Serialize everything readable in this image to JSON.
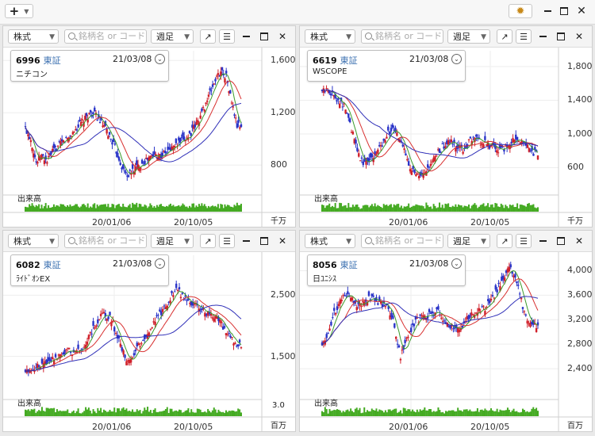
{
  "app": {
    "add_label": "+",
    "colors": {
      "up": "#d0202a",
      "down": "#2a34c8",
      "ma_short": "#3a9a2a",
      "ma_mid": "#d83030",
      "ma_long": "#3030b8",
      "volume": "#44aa22"
    }
  },
  "panels": [
    {
      "type_label": "株式",
      "search_placeholder": "銘柄名 or コード",
      "period_label": "週足",
      "code": "6996",
      "market": "東証",
      "date": "21/03/08",
      "name": "ニチコン",
      "volume_label": "出来高",
      "unit": "千万",
      "y_ticks": [
        "1,600",
        "1,200",
        "800"
      ],
      "x_ticks": [
        "20/01/06",
        "20/10/05"
      ],
      "chart_data": {
        "type": "candlestick",
        "ylim": [
          620,
          1650
        ],
        "y_tick_values": [
          1600,
          1200,
          800
        ],
        "closes": [
          1080,
          1000,
          820,
          870,
          830,
          900,
          940,
          980,
          1010,
          1060,
          1110,
          1150,
          1200,
          1180,
          1120,
          1060,
          980,
          880,
          760,
          720,
          770,
          800,
          830,
          860,
          880,
          870,
          900,
          930,
          960,
          990,
          1020,
          1080,
          1150,
          1250,
          1350,
          1450,
          1520,
          1480,
          1280,
          1100
        ]
      }
    },
    {
      "type_label": "株式",
      "search_placeholder": "銘柄名 or コード",
      "period_label": "週足",
      "code": "6619",
      "market": "東証",
      "date": "21/03/08",
      "name": "WSCOPE",
      "volume_label": "出来高",
      "unit": "千万",
      "y_ticks": [
        "1,800",
        "1,400",
        "1,000",
        "600"
      ],
      "x_ticks": [
        "20/01/06",
        "20/10/05"
      ],
      "chart_data": {
        "type": "candlestick",
        "ylim": [
          350,
          1950
        ],
        "y_tick_values": [
          1800,
          1400,
          1000,
          600
        ],
        "closes": [
          1500,
          1530,
          1450,
          1400,
          1300,
          1050,
          800,
          650,
          700,
          750,
          850,
          1000,
          1050,
          960,
          800,
          620,
          500,
          480,
          560,
          700,
          800,
          880,
          900,
          850,
          800,
          900,
          950,
          900,
          880,
          850,
          800,
          820,
          900,
          950,
          900,
          850,
          780
        ]
      }
    },
    {
      "type_label": "株式",
      "search_placeholder": "銘柄名 or コード",
      "period_label": "週足",
      "code": "6082",
      "market": "東証",
      "date": "21/03/08",
      "name": "ﾗｲﾄﾞｵﾝEX",
      "volume_label": "出来高",
      "unit": "百万",
      "vol_top_label": "3.0",
      "y_ticks": [
        "2,500",
        "1,500"
      ],
      "x_ticks": [
        "20/01/06",
        "20/10/05"
      ],
      "chart_data": {
        "type": "candlestick",
        "ylim": [
          900,
          3100
        ],
        "y_tick_values": [
          2500,
          1500
        ],
        "closes": [
          1250,
          1300,
          1350,
          1400,
          1450,
          1500,
          1550,
          1600,
          1550,
          1600,
          1700,
          1900,
          2100,
          2200,
          2150,
          1900,
          1600,
          1400,
          1550,
          1700,
          1850,
          2000,
          2150,
          2300,
          2450,
          2600,
          2500,
          2400,
          2350,
          2300,
          2200,
          2150,
          2100,
          1950,
          1800,
          1700
        ]
      }
    },
    {
      "type_label": "株式",
      "search_placeholder": "銘柄名 or コード",
      "period_label": "週足",
      "code": "8056",
      "market": "東証",
      "date": "21/03/08",
      "name": "日ﾕﾆｼｽ",
      "volume_label": "出来高",
      "unit": "百万",
      "y_ticks": [
        "4,000",
        "3,600",
        "3,200",
        "2,800",
        "2,400"
      ],
      "x_ticks": [
        "20/01/06",
        "20/10/05"
      ],
      "chart_data": {
        "type": "candlestick",
        "ylim": [
          2000,
          4200
        ],
        "y_tick_values": [
          4000,
          3600,
          3200,
          2800,
          2400
        ],
        "closes": [
          2800,
          3000,
          3300,
          3500,
          3600,
          3550,
          3400,
          3500,
          3550,
          3500,
          3450,
          3400,
          3100,
          2600,
          2900,
          3100,
          3200,
          3250,
          3300,
          3350,
          3200,
          3100,
          3050,
          3100,
          3200,
          3300,
          3350,
          3400,
          3500,
          3700,
          3900,
          4050,
          3900,
          3500,
          3200,
          3100
        ]
      }
    }
  ]
}
